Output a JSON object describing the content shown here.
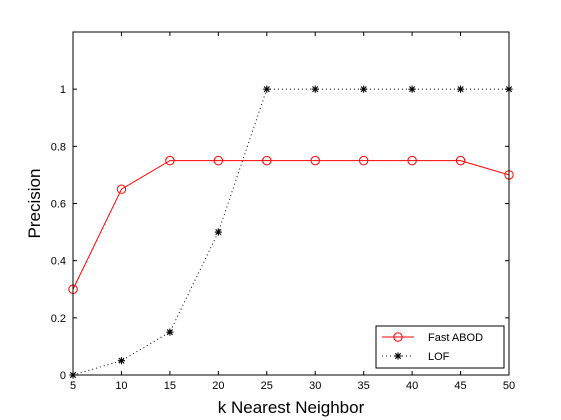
{
  "chart_data": {
    "type": "line",
    "title": "",
    "xlabel": "k Nearest Neighbor",
    "ylabel": "Precision",
    "x": [
      5,
      10,
      15,
      20,
      25,
      30,
      35,
      40,
      45,
      50
    ],
    "xlim": [
      5,
      50
    ],
    "ylim": [
      0,
      1.2
    ],
    "xticks": [
      5,
      10,
      15,
      20,
      25,
      30,
      35,
      40,
      45,
      50
    ],
    "xtick_labels": [
      "5",
      "10",
      "15",
      "20",
      "25",
      "30",
      "35",
      "40",
      "45",
      "50"
    ],
    "yticks": [
      0,
      0.2,
      0.4,
      0.6,
      0.8,
      1
    ],
    "ytick_labels": [
      "0",
      "0.2",
      "0.4",
      "0.6",
      "0.8",
      "1"
    ],
    "grid": false,
    "legend_position": "bottom-right",
    "series": [
      {
        "name": "Fast ABOD",
        "values": [
          0.3,
          0.65,
          0.75,
          0.75,
          0.75,
          0.75,
          0.75,
          0.75,
          0.75,
          0.7
        ],
        "color": "#ff0000",
        "line_style": "solid",
        "marker": "circle"
      },
      {
        "name": "LOF",
        "values": [
          0.0,
          0.05,
          0.15,
          0.5,
          1.0,
          1.0,
          1.0,
          1.0,
          1.0,
          1.0
        ],
        "color": "#000000",
        "line_style": "dotted",
        "marker": "asterisk"
      }
    ]
  }
}
